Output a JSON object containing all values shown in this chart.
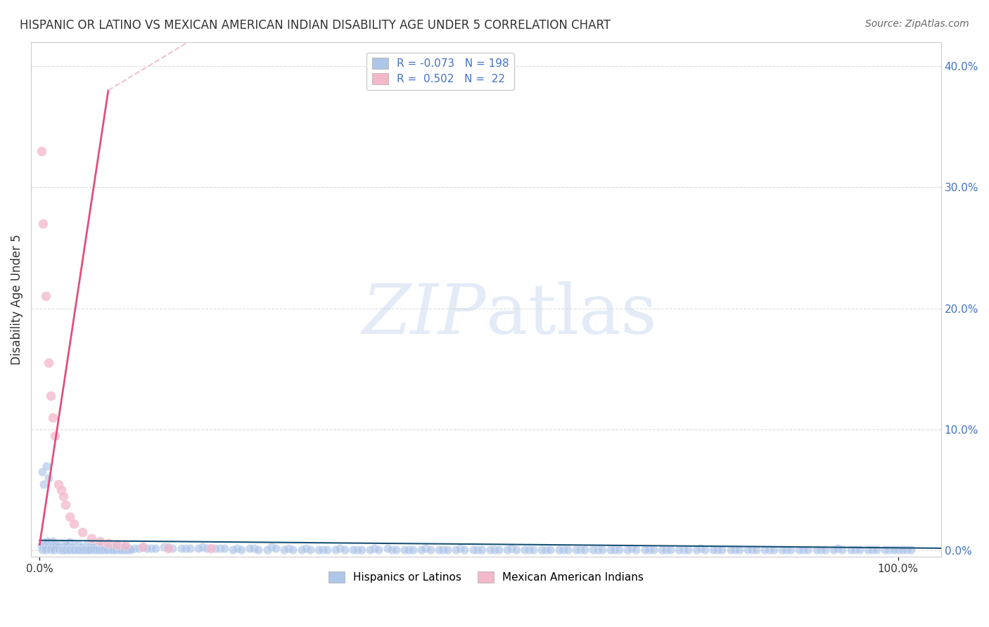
{
  "title": "HISPANIC OR LATINO VS MEXICAN AMERICAN INDIAN DISABILITY AGE UNDER 5 CORRELATION CHART",
  "source": "Source: ZipAtlas.com",
  "xlabel_ticks": [
    "0.0%",
    "100.0%"
  ],
  "ylabel": "Disability Age Under 5",
  "ylabel_ticks": [
    "0.0%",
    "10.0%",
    "20.0%",
    "30.0%",
    "40.0%"
  ],
  "ylim": [
    -0.005,
    0.42
  ],
  "xlim": [
    -0.01,
    1.05
  ],
  "legend_entries": [
    {
      "label": "Hispanics or Latinos",
      "color": "#aec6e8",
      "R": "-0.073",
      "N": "198"
    },
    {
      "label": "Mexican American Indians",
      "color": "#f4a7b9",
      "R": "0.502",
      "N": "22"
    }
  ],
  "blue_scatter_x": [
    0.003,
    0.005,
    0.008,
    0.01,
    0.012,
    0.015,
    0.018,
    0.02,
    0.025,
    0.03,
    0.035,
    0.04,
    0.045,
    0.05,
    0.055,
    0.06,
    0.065,
    0.07,
    0.075,
    0.08,
    0.09,
    0.1,
    0.11,
    0.12,
    0.13,
    0.15,
    0.17,
    0.19,
    0.21,
    0.23,
    0.25,
    0.27,
    0.29,
    0.31,
    0.33,
    0.35,
    0.37,
    0.39,
    0.41,
    0.43,
    0.45,
    0.47,
    0.49,
    0.51,
    0.53,
    0.55,
    0.57,
    0.59,
    0.61,
    0.63,
    0.65,
    0.67,
    0.69,
    0.71,
    0.73,
    0.75,
    0.77,
    0.79,
    0.81,
    0.83,
    0.85,
    0.87,
    0.89,
    0.91,
    0.93,
    0.95,
    0.97,
    0.99,
    1.0,
    1.01,
    0.002,
    0.004,
    0.006,
    0.009,
    0.011,
    0.014,
    0.016,
    0.019,
    0.022,
    0.028,
    0.032,
    0.038,
    0.042,
    0.048,
    0.052,
    0.058,
    0.062,
    0.068,
    0.072,
    0.078,
    0.082,
    0.088,
    0.092,
    0.098,
    0.105,
    0.115,
    0.125,
    0.135,
    0.145,
    0.155,
    0.165,
    0.175,
    0.185,
    0.195,
    0.205,
    0.215,
    0.225,
    0.235,
    0.245,
    0.255,
    0.265,
    0.275,
    0.285,
    0.295,
    0.305,
    0.315,
    0.325,
    0.335,
    0.345,
    0.355,
    0.365,
    0.375,
    0.385,
    0.395,
    0.405,
    0.415,
    0.425,
    0.435,
    0.445,
    0.455,
    0.465,
    0.475,
    0.485,
    0.495,
    0.505,
    0.515,
    0.525,
    0.535,
    0.545,
    0.555,
    0.565,
    0.575,
    0.585,
    0.595,
    0.605,
    0.615,
    0.625,
    0.635,
    0.645,
    0.655,
    0.665,
    0.675,
    0.685,
    0.695,
    0.705,
    0.715,
    0.725,
    0.735,
    0.745,
    0.755,
    0.765,
    0.775,
    0.785,
    0.795,
    0.805,
    0.815,
    0.825,
    0.835,
    0.845,
    0.855,
    0.865,
    0.875,
    0.885,
    0.895,
    0.905,
    0.915,
    0.925,
    0.935,
    0.945,
    0.955,
    0.965,
    0.975,
    0.985,
    0.995,
    1.005,
    1.015,
    0.003,
    0.007,
    0.013,
    0.017,
    0.023,
    0.026,
    0.027,
    0.029,
    0.031,
    0.034,
    0.036,
    0.039,
    0.041,
    0.044,
    0.046,
    0.049,
    0.051,
    0.054,
    0.056,
    0.059,
    0.063,
    0.066,
    0.069,
    0.073,
    0.076,
    0.079,
    0.083,
    0.086,
    0.089,
    0.093,
    0.096,
    0.099,
    0.102,
    0.106
  ],
  "blue_scatter_y": [
    0.065,
    0.055,
    0.07,
    0.06,
    0.005,
    0.008,
    0.003,
    0.004,
    0.006,
    0.005,
    0.007,
    0.004,
    0.005,
    0.003,
    0.004,
    0.005,
    0.003,
    0.004,
    0.003,
    0.003,
    0.004,
    0.003,
    0.002,
    0.003,
    0.002,
    0.003,
    0.002,
    0.003,
    0.002,
    0.002,
    0.002,
    0.003,
    0.002,
    0.002,
    0.001,
    0.002,
    0.001,
    0.002,
    0.001,
    0.001,
    0.002,
    0.001,
    0.002,
    0.001,
    0.001,
    0.002,
    0.001,
    0.001,
    0.001,
    0.001,
    0.001,
    0.001,
    0.002,
    0.001,
    0.001,
    0.001,
    0.002,
    0.001,
    0.001,
    0.001,
    0.001,
    0.001,
    0.001,
    0.001,
    0.002,
    0.001,
    0.001,
    0.001,
    0.001,
    0.001,
    0.004,
    0.006,
    0.005,
    0.008,
    0.004,
    0.003,
    0.005,
    0.004,
    0.003,
    0.003,
    0.004,
    0.003,
    0.002,
    0.003,
    0.002,
    0.003,
    0.003,
    0.002,
    0.003,
    0.002,
    0.002,
    0.003,
    0.002,
    0.002,
    0.002,
    0.002,
    0.002,
    0.002,
    0.003,
    0.002,
    0.002,
    0.002,
    0.002,
    0.002,
    0.002,
    0.002,
    0.001,
    0.001,
    0.002,
    0.001,
    0.001,
    0.002,
    0.001,
    0.001,
    0.001,
    0.001,
    0.001,
    0.001,
    0.001,
    0.001,
    0.001,
    0.001,
    0.001,
    0.001,
    0.002,
    0.001,
    0.001,
    0.001,
    0.001,
    0.001,
    0.001,
    0.001,
    0.001,
    0.001,
    0.001,
    0.001,
    0.001,
    0.001,
    0.001,
    0.001,
    0.001,
    0.001,
    0.001,
    0.001,
    0.001,
    0.001,
    0.001,
    0.001,
    0.001,
    0.001,
    0.001,
    0.001,
    0.001,
    0.001,
    0.001,
    0.001,
    0.001,
    0.001,
    0.001,
    0.001,
    0.001,
    0.001,
    0.001,
    0.001,
    0.001,
    0.001,
    0.001,
    0.001,
    0.001,
    0.001,
    0.001,
    0.001,
    0.001,
    0.001,
    0.001,
    0.001,
    0.001,
    0.001,
    0.001,
    0.001,
    0.001,
    0.001,
    0.001,
    0.001,
    0.001,
    0.001,
    0.001,
    0.001,
    0.001,
    0.001,
    0.001,
    0.001,
    0.001,
    0.001,
    0.001,
    0.001,
    0.001,
    0.001,
    0.001,
    0.001,
    0.001,
    0.001,
    0.001,
    0.001,
    0.001,
    0.001,
    0.001,
    0.001,
    0.001,
    0.001,
    0.001,
    0.001,
    0.001,
    0.001,
    0.001,
    0.001,
    0.001,
    0.001,
    0.001,
    0.001
  ],
  "blue_line": {
    "x": [
      0.0,
      1.05
    ],
    "y": [
      0.0085,
      0.002
    ]
  },
  "pink_scatter_x": [
    0.002,
    0.004,
    0.007,
    0.01,
    0.013,
    0.015,
    0.018,
    0.022,
    0.025,
    0.028,
    0.03,
    0.035,
    0.04,
    0.05,
    0.06,
    0.07,
    0.08,
    0.09,
    0.1,
    0.12,
    0.15,
    0.2
  ],
  "pink_scatter_y": [
    0.33,
    0.27,
    0.21,
    0.155,
    0.128,
    0.11,
    0.095,
    0.055,
    0.05,
    0.045,
    0.038,
    0.028,
    0.022,
    0.015,
    0.01,
    0.008,
    0.006,
    0.005,
    0.004,
    0.003,
    0.002,
    0.002
  ],
  "pink_line": {
    "x": [
      0.0,
      0.21
    ],
    "y": [
      -0.01,
      0.42
    ]
  },
  "pink_dashed_line": {
    "x": [
      0.0,
      0.21
    ],
    "y": [
      -0.01,
      0.42
    ]
  },
  "blue_color": "#aec6e8",
  "pink_color": "#f4b8cb",
  "blue_line_color": "#1a5276",
  "pink_line_color": "#e0507a",
  "pink_dashed_color": "#f4c0d0",
  "background_color": "#ffffff",
  "grid_color": "#dddddd",
  "title_color": "#333333",
  "axis_label_color": "#333333",
  "tick_label_color_right": "#4472c4",
  "watermark": "ZIPatlas",
  "watermark_color_zip": "#c8d8f0",
  "watermark_color_atlas": "#c8d8f0"
}
